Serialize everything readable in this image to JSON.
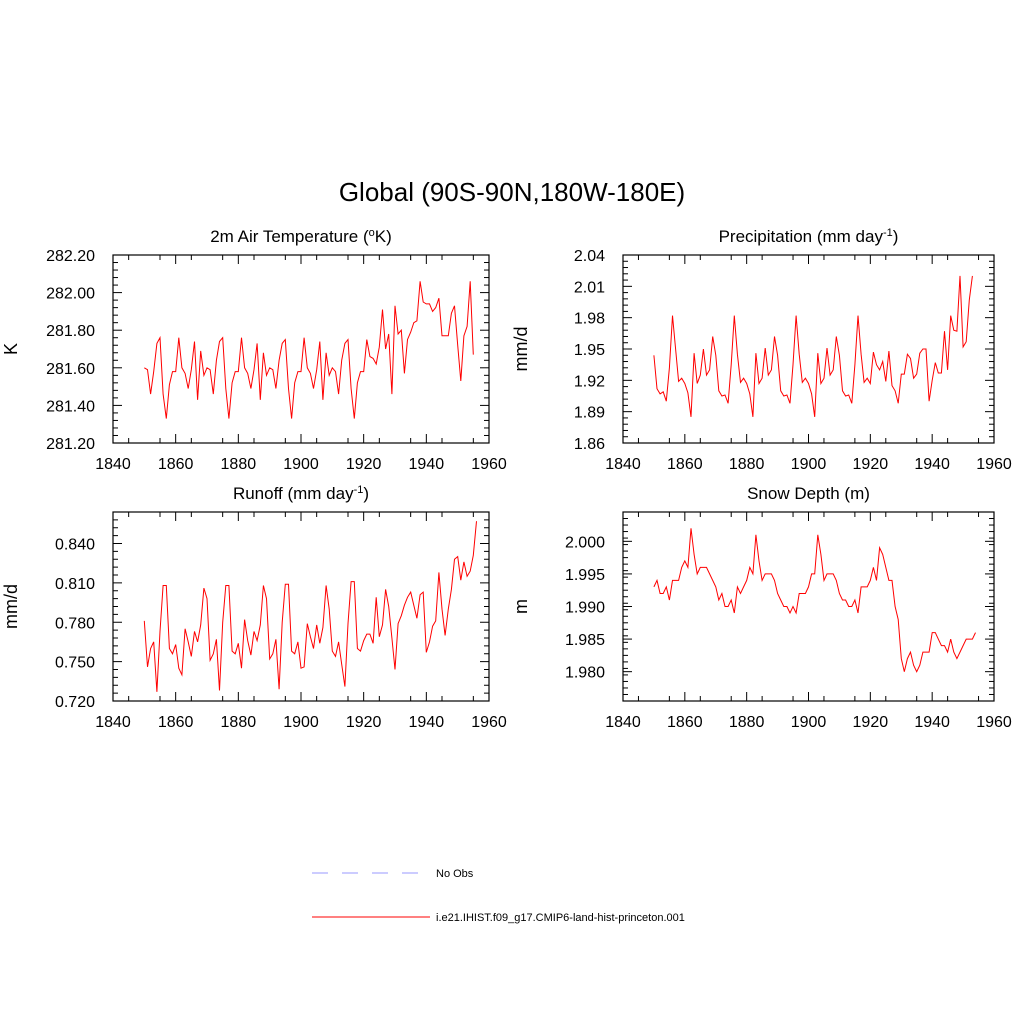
{
  "title": "Global (90S-90N,180W-180E)",
  "colors": {
    "model": "#ff0000",
    "obs": "#9999ff",
    "axis": "#000000"
  },
  "legend": {
    "placement": "bottom-center",
    "entries": [
      {
        "label": "No Obs",
        "style": "dashed",
        "color": "#9999ff"
      },
      {
        "label": "i.e21.IHIST.f09_g17.CMIP6-land-hist-princeton.001",
        "style": "solid",
        "color": "#ff0000"
      }
    ]
  },
  "chart_data": [
    {
      "type": "line",
      "title": "2m Air Temperature (",
      "title_sup": "o",
      "title_rest": "K)",
      "ylabel": "K",
      "xlim": [
        1840,
        1960
      ],
      "ylim": [
        281.2,
        282.2
      ],
      "xticks": [
        1840,
        1860,
        1880,
        1900,
        1920,
        1940,
        1960
      ],
      "yticks": [
        "281.20",
        "281.40",
        "281.60",
        "281.80",
        "282.00",
        "282.20"
      ],
      "x_start": 1850,
      "x_step": 1,
      "series": [
        {
          "values": [
            281.6,
            281.59,
            281.46,
            281.58,
            281.73,
            281.76,
            281.46,
            281.33,
            281.51,
            281.58,
            281.58,
            281.76,
            281.6,
            281.57,
            281.49,
            281.59,
            281.74,
            281.43,
            281.69,
            281.56,
            281.6,
            281.59,
            281.46,
            281.64,
            281.74,
            281.76,
            281.49,
            281.33,
            281.52,
            281.58,
            281.58,
            281.76,
            281.6,
            281.57,
            281.49,
            281.59,
            281.73,
            281.43,
            281.68,
            281.56,
            281.6,
            281.59,
            281.49,
            281.64,
            281.73,
            281.75,
            281.49,
            281.33,
            281.52,
            281.58,
            281.58,
            281.76,
            281.6,
            281.57,
            281.49,
            281.59,
            281.74,
            281.43,
            281.68,
            281.56,
            281.6,
            281.58,
            281.46,
            281.64,
            281.73,
            281.75,
            281.49,
            281.33,
            281.52,
            281.58,
            281.58,
            281.75,
            281.66,
            281.65,
            281.62,
            281.71,
            281.91,
            281.7,
            281.78,
            281.46,
            281.93,
            281.78,
            281.8,
            281.57,
            281.75,
            281.79,
            281.84,
            281.85,
            282.06,
            281.95,
            281.94,
            281.94,
            281.9,
            281.92,
            281.97,
            281.77,
            281.77,
            281.77,
            281.89,
            281.93,
            281.72,
            281.53,
            281.77,
            281.82,
            282.06,
            281.67
          ]
        }
      ]
    },
    {
      "type": "line",
      "title": "Precipitation (mm day",
      "title_sup": "-1",
      "title_rest": ")",
      "ylabel": "mm/d",
      "xlim": [
        1840,
        1960
      ],
      "ylim": [
        1.86,
        2.04
      ],
      "xticks": [
        1840,
        1860,
        1880,
        1900,
        1920,
        1940,
        1960
      ],
      "yticks": [
        "1.86",
        "1.89",
        "1.92",
        "1.95",
        "1.98",
        "2.01",
        "2.04"
      ],
      "x_start": 1850,
      "x_step": 1,
      "series": [
        {
          "values": [
            1.944,
            1.912,
            1.907,
            1.909,
            1.9,
            1.932,
            1.982,
            1.95,
            1.919,
            1.922,
            1.917,
            1.908,
            1.885,
            1.946,
            1.917,
            1.925,
            1.95,
            1.925,
            1.93,
            1.962,
            1.944,
            1.91,
            1.905,
            1.906,
            1.898,
            1.935,
            1.982,
            1.945,
            1.918,
            1.922,
            1.917,
            1.907,
            1.885,
            1.946,
            1.917,
            1.922,
            1.951,
            1.925,
            1.93,
            1.962,
            1.944,
            1.91,
            1.905,
            1.906,
            1.898,
            1.935,
            1.982,
            1.945,
            1.918,
            1.922,
            1.917,
            1.907,
            1.885,
            1.946,
            1.917,
            1.922,
            1.951,
            1.925,
            1.93,
            1.962,
            1.944,
            1.91,
            1.905,
            1.906,
            1.898,
            1.935,
            1.982,
            1.945,
            1.918,
            1.922,
            1.917,
            1.947,
            1.935,
            1.93,
            1.938,
            1.919,
            1.948,
            1.915,
            1.91,
            1.898,
            1.926,
            1.926,
            1.945,
            1.941,
            1.922,
            1.926,
            1.946,
            1.95,
            1.95,
            1.9,
            1.92,
            1.937,
            1.927,
            1.927,
            1.967,
            1.93,
            1.982,
            1.968,
            1.967,
            2.02,
            1.952,
            1.957,
            1.997,
            2.02
          ]
        }
      ]
    },
    {
      "type": "line",
      "title": "Runoff (mm day",
      "title_sup": "-1",
      "title_rest": ")",
      "ylabel": "mm/d",
      "xlim": [
        1840,
        1960
      ],
      "ylim": [
        0.72,
        0.864
      ],
      "xticks": [
        1840,
        1860,
        1880,
        1900,
        1920,
        1940,
        1960
      ],
      "yticks": [
        "0.720",
        "0.750",
        "0.780",
        "0.810",
        "0.840"
      ],
      "x_start": 1850,
      "x_step": 1,
      "series": [
        {
          "values": [
            0.781,
            0.746,
            0.76,
            0.765,
            0.727,
            0.773,
            0.808,
            0.808,
            0.76,
            0.756,
            0.763,
            0.745,
            0.74,
            0.775,
            0.765,
            0.754,
            0.773,
            0.765,
            0.778,
            0.806,
            0.798,
            0.751,
            0.756,
            0.767,
            0.728,
            0.78,
            0.808,
            0.808,
            0.758,
            0.756,
            0.764,
            0.745,
            0.782,
            0.766,
            0.755,
            0.773,
            0.766,
            0.778,
            0.808,
            0.798,
            0.752,
            0.756,
            0.767,
            0.729,
            0.78,
            0.809,
            0.809,
            0.758,
            0.756,
            0.765,
            0.745,
            0.746,
            0.779,
            0.769,
            0.76,
            0.778,
            0.764,
            0.776,
            0.808,
            0.79,
            0.758,
            0.754,
            0.765,
            0.748,
            0.731,
            0.779,
            0.811,
            0.811,
            0.76,
            0.758,
            0.766,
            0.771,
            0.771,
            0.764,
            0.799,
            0.769,
            0.778,
            0.805,
            0.792,
            0.768,
            0.744,
            0.779,
            0.785,
            0.793,
            0.799,
            0.803,
            0.793,
            0.783,
            0.801,
            0.803,
            0.757,
            0.765,
            0.777,
            0.781,
            0.818,
            0.79,
            0.77,
            0.79,
            0.805,
            0.828,
            0.83,
            0.812,
            0.826,
            0.815,
            0.819,
            0.831,
            0.857
          ]
        }
      ]
    },
    {
      "type": "line",
      "title": "Snow Depth (m)",
      "title_sup": "",
      "title_rest": "",
      "ylabel": "m",
      "xlim": [
        1840,
        1960
      ],
      "ylim": [
        1.9755,
        2.0045
      ],
      "xticks": [
        1840,
        1860,
        1880,
        1900,
        1920,
        1940,
        1960
      ],
      "yticks": [
        "1.980",
        "1.985",
        "1.990",
        "1.995",
        "2.000"
      ],
      "x_start": 1850,
      "x_step": 1,
      "series": [
        {
          "values": [
            1.993,
            1.994,
            1.992,
            1.992,
            1.993,
            1.991,
            1.994,
            1.994,
            1.994,
            1.996,
            1.997,
            1.996,
            2.002,
            1.998,
            1.995,
            1.996,
            1.996,
            1.996,
            1.995,
            1.994,
            1.993,
            1.991,
            1.992,
            1.99,
            1.99,
            1.991,
            1.989,
            1.993,
            1.992,
            1.993,
            1.994,
            1.996,
            1.995,
            2.001,
            1.997,
            1.994,
            1.995,
            1.995,
            1.995,
            1.994,
            1.992,
            1.991,
            1.99,
            1.99,
            1.989,
            1.99,
            1.989,
            1.992,
            1.992,
            1.992,
            1.993,
            1.995,
            1.995,
            2.001,
            1.998,
            1.994,
            1.995,
            1.995,
            1.995,
            1.994,
            1.992,
            1.991,
            1.991,
            1.99,
            1.99,
            1.991,
            1.989,
            1.993,
            1.993,
            1.993,
            1.994,
            1.996,
            1.994,
            1.999,
            1.998,
            1.996,
            1.994,
            1.994,
            1.99,
            1.988,
            1.982,
            1.98,
            1.982,
            1.983,
            1.981,
            1.98,
            1.981,
            1.983,
            1.983,
            1.983,
            1.986,
            1.986,
            1.985,
            1.984,
            1.984,
            1.983,
            1.985,
            1.983,
            1.982,
            1.983,
            1.984,
            1.985,
            1.985,
            1.985,
            1.986
          ]
        }
      ]
    }
  ]
}
